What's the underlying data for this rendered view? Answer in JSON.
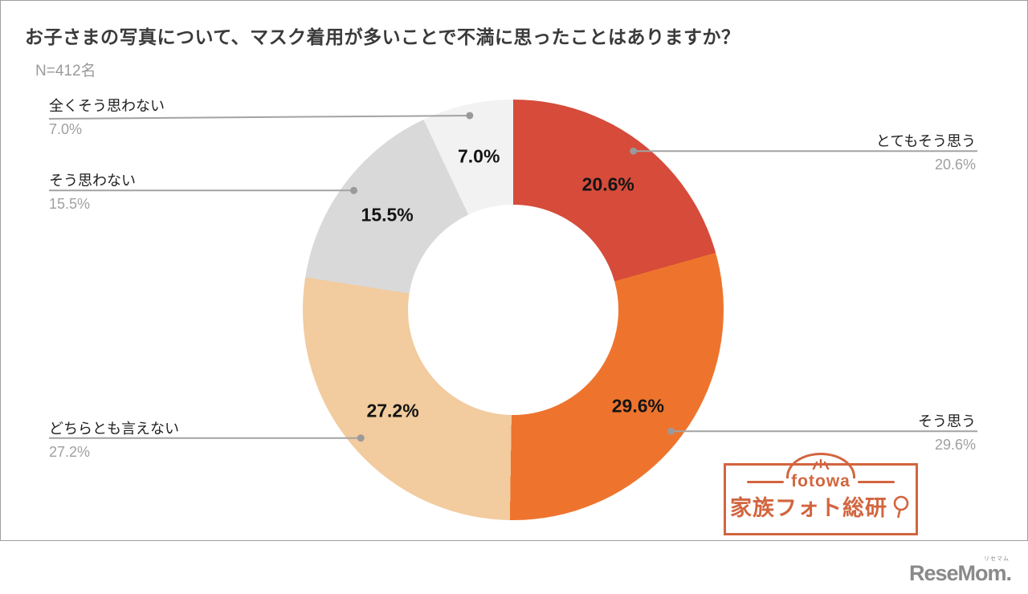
{
  "header": {
    "title": "お子さまの写真について、マスク着用が多いことで不満に思ったことはありますか？",
    "sample_size": "N=412名"
  },
  "chart_data": {
    "type": "pie",
    "variant": "donut",
    "title": "お子さまの写真について、マスク着用が多いことで不満に思ったことはありますか？",
    "sample_size_label": "N=412名",
    "unit": "%",
    "start_angle_deg": 0,
    "direction": "clockwise",
    "legend_position": "callout-labels",
    "slices": [
      {
        "label": "とてもそう思う",
        "value": 20.6,
        "display": "20.6%",
        "color": "#d64b3a"
      },
      {
        "label": "そう思う",
        "value": 29.6,
        "display": "29.6%",
        "color": "#ee742e"
      },
      {
        "label": "どちらとも言えない",
        "value": 27.2,
        "display": "27.2%",
        "color": "#f2cb9e"
      },
      {
        "label": "そう思わない",
        "value": 15.5,
        "display": "15.5%",
        "color": "#d9d9d9"
      },
      {
        "label": "全くそう思わない",
        "value": 7.0,
        "display": "7.0%",
        "color": "#f2f2f2"
      }
    ]
  },
  "branding": {
    "fotowa_logo": {
      "wordmark": "fotowa",
      "name": "家族フォト総研",
      "color": "#d2653f"
    },
    "resemom_logo": {
      "text": "ReseMom.",
      "ruby": "リセマム"
    }
  }
}
